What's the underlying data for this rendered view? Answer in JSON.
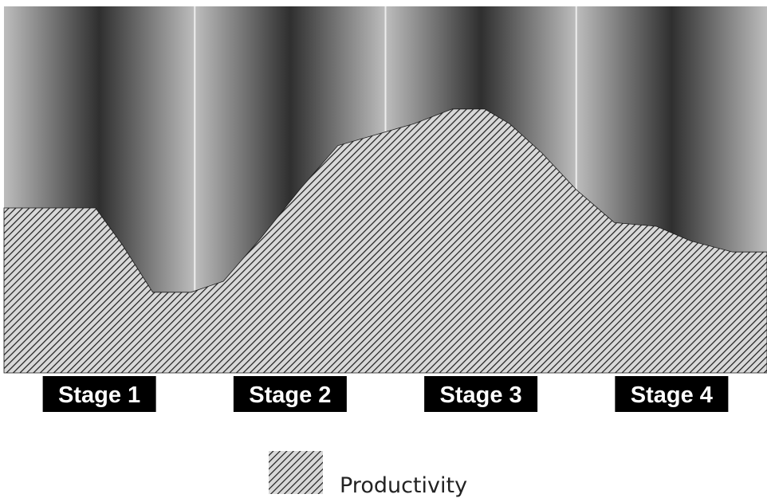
{
  "colors": {
    "band_light": "#bdbdbd",
    "band_dark": "#2f2f2f",
    "divider": "#ededed",
    "hatch_line": "#1c1c1c",
    "hatch_bg": "#d8d8d8",
    "label_bg": "#000000",
    "label_text": "#ffffff"
  },
  "legend": {
    "label": "Productivity"
  },
  "chart_data": {
    "type": "area",
    "title": "",
    "xlabel": "",
    "ylabel": "",
    "categories": [
      "Stage 1",
      "Stage 2",
      "Stage 3",
      "Stage 4"
    ],
    "xlim": [
      0,
      4
    ],
    "ylim": [
      0,
      100
    ],
    "grid": false,
    "legend_position": "bottom-center",
    "series": [
      {
        "name": "Productivity",
        "x": [
          0,
          0.48,
          0.62,
          0.78,
          0.98,
          1.15,
          1.35,
          1.55,
          1.75,
          2.15,
          2.35,
          2.52,
          2.65,
          2.82,
          3.0,
          3.2,
          3.42,
          3.6,
          3.82,
          4.0
        ],
        "y": [
          45,
          45,
          35,
          22,
          22,
          25,
          37,
          50,
          62,
          68,
          72,
          72,
          68,
          60,
          50,
          41,
          40,
          36,
          33,
          33
        ]
      }
    ]
  }
}
